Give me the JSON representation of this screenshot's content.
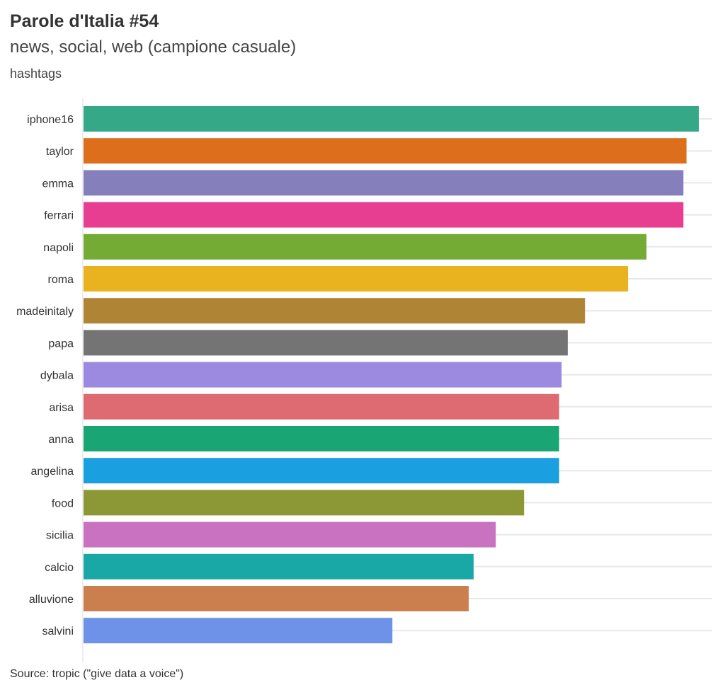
{
  "title": "Parole d'Italia #54",
  "subtitle": "news, social, web (campione casuale)",
  "axis_caption": "hashtags",
  "source": "Source: tropic (\"give data a voice\")",
  "chart_data": {
    "type": "bar",
    "orientation": "horizontal",
    "title": "Parole d'Italia #54",
    "subtitle": "news, social, web (campione casuale)",
    "ylabel": "hashtags",
    "xlabel": "",
    "xlim": [
      0,
      100
    ],
    "grid": true,
    "categories": [
      "iphone16",
      "taylor",
      "emma",
      "ferrari",
      "napoli",
      "roma",
      "madeinitaly",
      "papa",
      "dybala",
      "arisa",
      "anna",
      "angelina",
      "food",
      "sicilia",
      "calcio",
      "alluvione",
      "salvini"
    ],
    "values": [
      100,
      98,
      97.5,
      97.5,
      91.5,
      88.5,
      81.5,
      78.7,
      77.7,
      77.3,
      77.3,
      77.3,
      71.6,
      67,
      63.4,
      62.6,
      50.2
    ],
    "colors": [
      "#35a887",
      "#dc6e1c",
      "#8580bc",
      "#e83e92",
      "#74ab35",
      "#e8b31f",
      "#b08435",
      "#747474",
      "#9b8ae0",
      "#de6b72",
      "#19a574",
      "#1a9fe0",
      "#8b9835",
      "#c972bf",
      "#19a8a5",
      "#cb7f4f",
      "#6d92e8"
    ]
  }
}
